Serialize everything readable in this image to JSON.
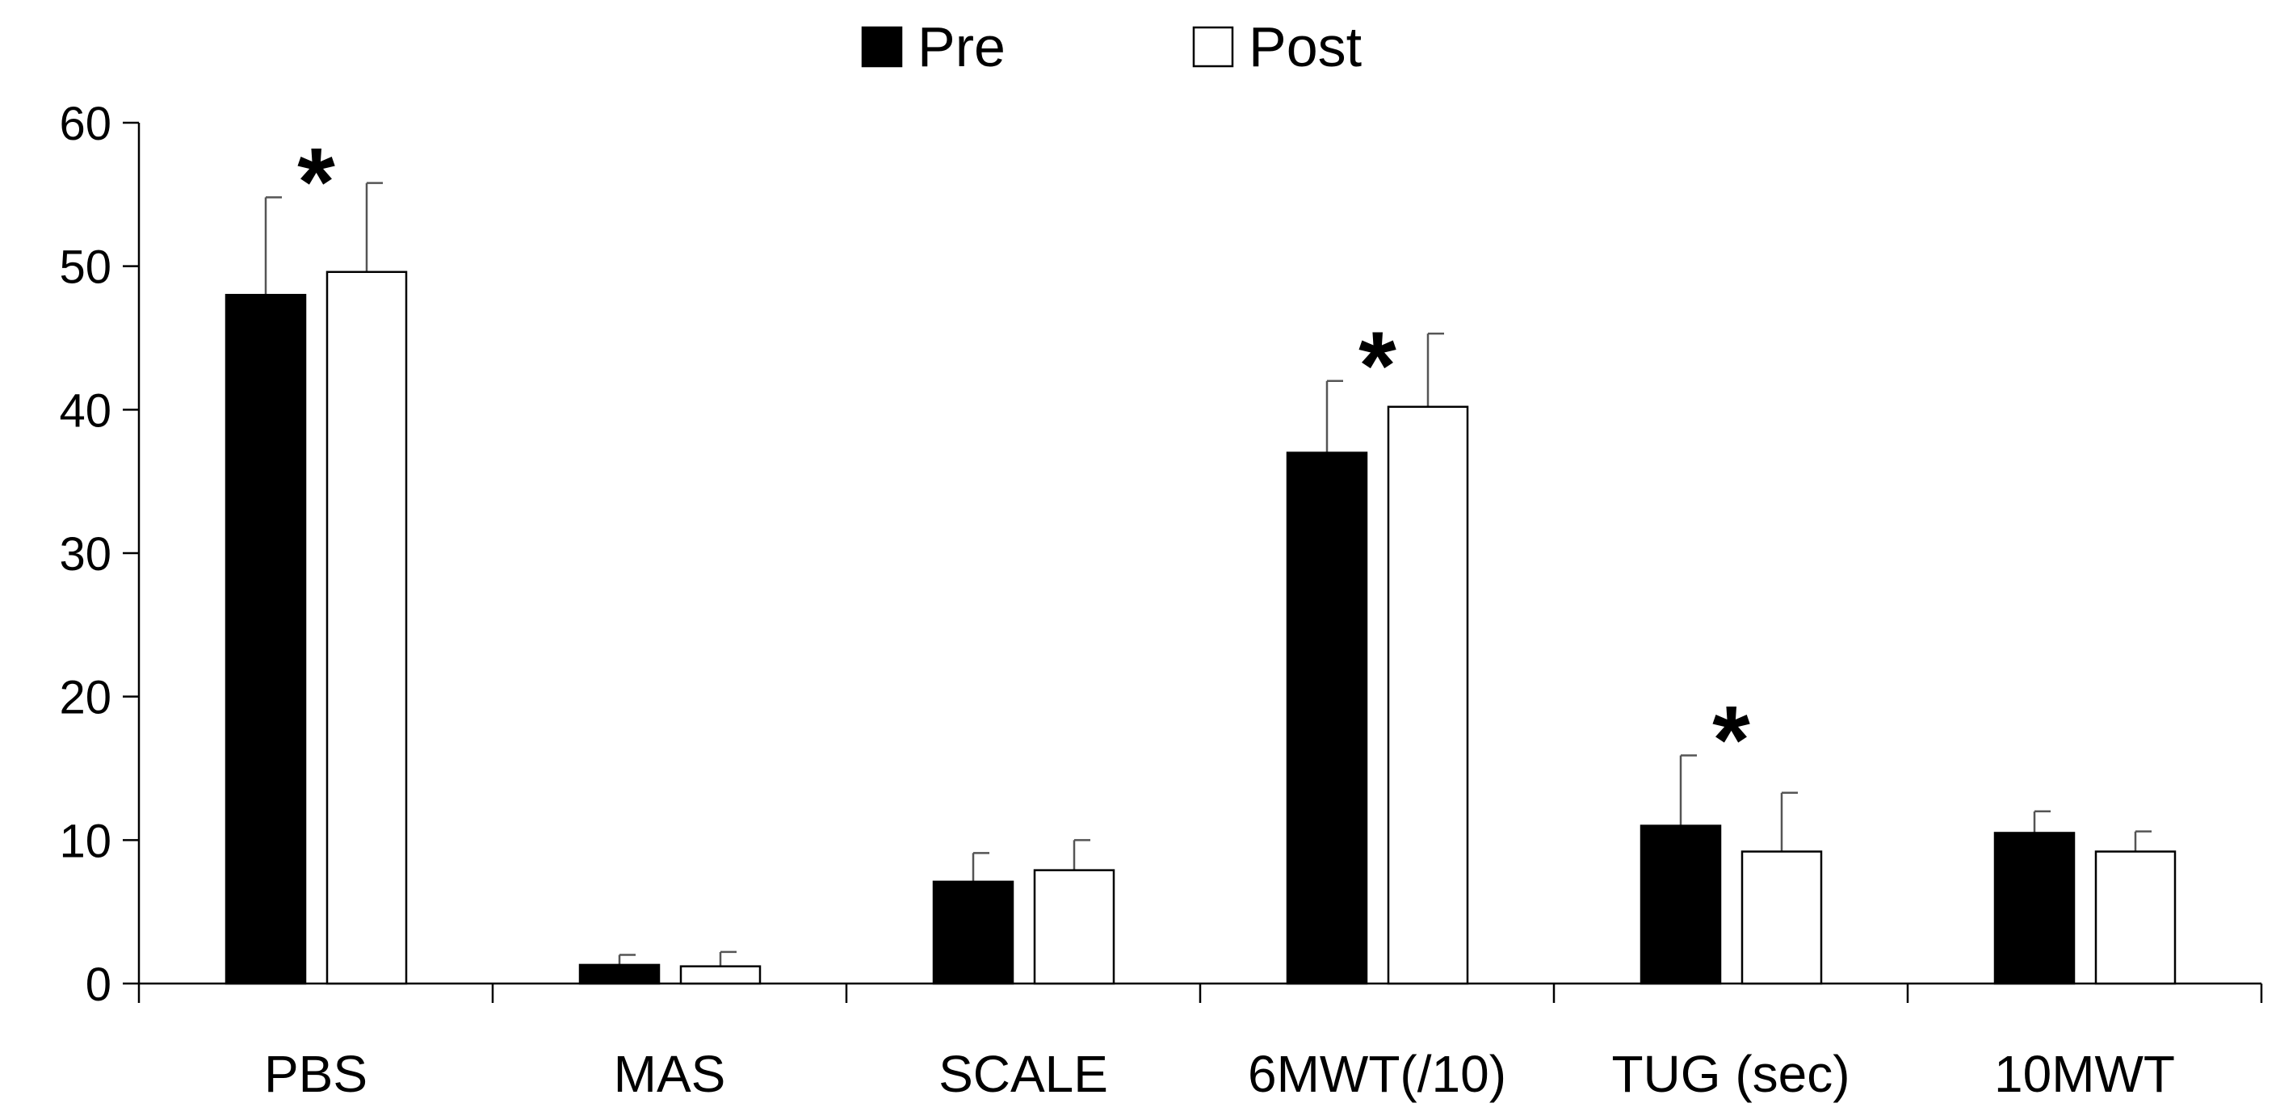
{
  "chart_data": {
    "type": "bar",
    "title": "",
    "xlabel": "",
    "ylabel": "",
    "categories": [
      "PBS",
      "MAS",
      "SCALE",
      "6MWT(/10)",
      "TUG (sec)",
      "10MWT"
    ],
    "series": [
      {
        "name": "Pre",
        "fill": "#000000",
        "values": [
          48.0,
          1.3,
          7.1,
          37.0,
          11.0,
          10.5
        ],
        "errors": [
          6.8,
          0.7,
          2.0,
          5.0,
          4.9,
          1.5
        ]
      },
      {
        "name": "Post",
        "fill": "#ffffff",
        "values": [
          49.6,
          1.2,
          7.9,
          40.2,
          9.2,
          9.2
        ],
        "errors": [
          6.2,
          1.0,
          2.1,
          5.1,
          4.1,
          1.4
        ]
      }
    ],
    "ylim": [
      0,
      60
    ],
    "yticks": [
      0,
      10,
      20,
      30,
      40,
      50,
      60
    ],
    "grid": false,
    "legend": {
      "position": "top-center",
      "entries": [
        "Pre",
        "Post"
      ]
    },
    "significance": [
      {
        "category": "PBS",
        "symbol": "*"
      },
      {
        "category": "6MWT(/10)",
        "symbol": "*"
      },
      {
        "category": "TUG (sec)",
        "symbol": "*"
      }
    ]
  }
}
